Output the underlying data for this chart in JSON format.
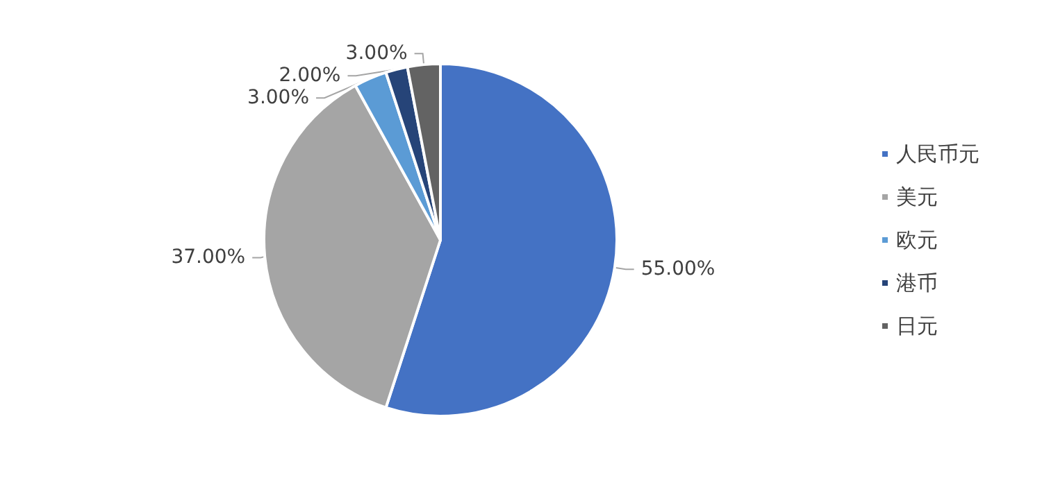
{
  "chart_data": {
    "type": "pie",
    "categories": [
      "人民币元",
      "美元",
      "欧元",
      "港币",
      "日元"
    ],
    "values": [
      55,
      37,
      3,
      2,
      3
    ],
    "colors": [
      "#4472c4",
      "#a5a5a5",
      "#5b9bd5",
      "#264478",
      "#636363"
    ],
    "value_labels": [
      "55.00%",
      "37.00%",
      "3.00%",
      "2.00%",
      "3.00%"
    ],
    "legend": "right"
  }
}
